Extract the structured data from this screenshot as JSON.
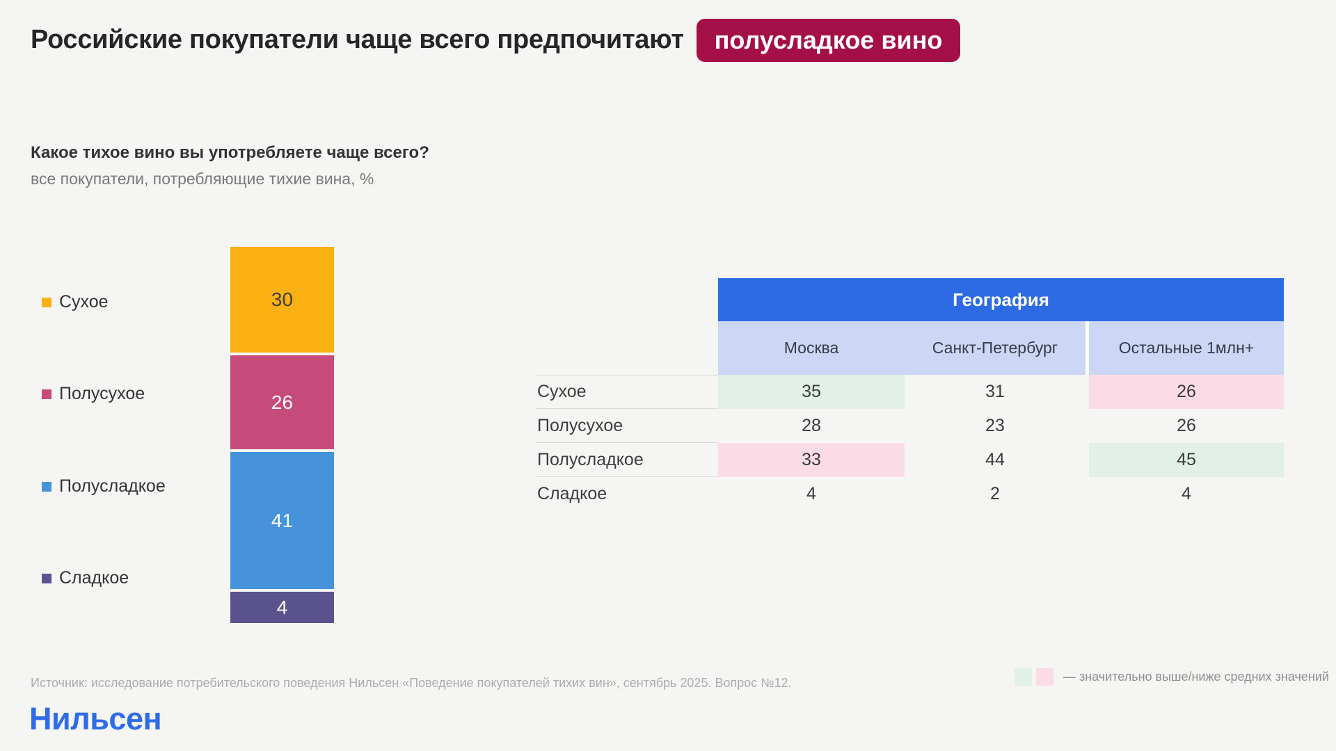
{
  "page": {
    "background": "#F5F5F3"
  },
  "header": {
    "title_prefix": "Российские покупатели чаще всего предпочитают",
    "badge": "полусладкое вино",
    "badge_color": "#A50F48"
  },
  "question": {
    "title": "Какое тихое вино вы употребляете чаще всего?",
    "subtitle": "все покупатели, потребляющие тихие вина, %"
  },
  "chart_data": {
    "type": "bar",
    "stacked": true,
    "orientation": "vertical",
    "title": "Какое тихое вино вы употребляете чаще всего?",
    "units": "%",
    "categories": [
      "Сухое",
      "Полусухое",
      "Полусладкое",
      "Сладкое"
    ],
    "values": [
      30,
      26,
      41,
      4
    ],
    "colors": [
      "#FBB013",
      "#C64B7B",
      "#4793DB",
      "#5B538D"
    ],
    "value_label_colors": [
      "#3E3E3E",
      "#FFFFFF",
      "#FFFFFF",
      "#FFFFFF"
    ],
    "legend_position": "left",
    "grid": false
  },
  "table": {
    "header": "География",
    "header_bg": "#2D6BE4",
    "subheader_bg": "#CBD7F4",
    "high_color": "#E2F0E8",
    "low_color": "#FBDCE6",
    "columns": [
      "Москва",
      "Санкт-Петербург",
      "Остальные 1млн+"
    ],
    "rows": [
      {
        "label": "Сухое",
        "values": [
          35,
          31,
          26
        ],
        "highlights": [
          "high",
          null,
          "low"
        ]
      },
      {
        "label": "Полусухое",
        "values": [
          28,
          23,
          26
        ],
        "highlights": [
          null,
          null,
          null
        ]
      },
      {
        "label": "Полусладкое",
        "values": [
          33,
          44,
          45
        ],
        "highlights": [
          "low",
          null,
          "high"
        ]
      },
      {
        "label": "Сладкое",
        "values": [
          4,
          2,
          4
        ],
        "highlights": [
          null,
          null,
          null
        ]
      }
    ]
  },
  "footnote": {
    "source": "Источник: исследование потребительского поведения Нильсен «Поведение покупателей тихих вин», сентябрь 2025. Вопрос №12.",
    "legend_text": "— значительно выше/ниже средних значений"
  },
  "logo": {
    "text": "Нильсен",
    "color": "#2F6BE8"
  }
}
